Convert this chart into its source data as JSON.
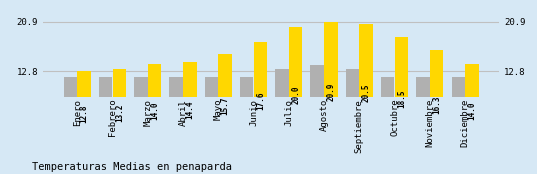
{
  "categories": [
    "Enero",
    "Febrero",
    "Marzo",
    "Abril",
    "Mayo",
    "Junio",
    "Julio",
    "Agosto",
    "Septiembre",
    "Octubre",
    "Noviembre",
    "Diciembre"
  ],
  "yellow_values": [
    12.8,
    13.2,
    14.0,
    14.4,
    15.7,
    17.6,
    20.0,
    20.9,
    20.5,
    18.5,
    16.3,
    14.0
  ],
  "gray_values": [
    11.8,
    11.8,
    11.8,
    11.8,
    11.8,
    11.8,
    13.2,
    13.8,
    13.2,
    11.8,
    11.8,
    11.8
  ],
  "yellow_color": "#FFD700",
  "gray_color": "#B0B0B0",
  "background_color": "#D6E8F5",
  "hline_color": "#C0C0C0",
  "hline_values": [
    12.8,
    20.9
  ],
  "ylabel_left_values": [
    "20.9",
    "12.8"
  ],
  "ylabel_right_values": [
    "20.9",
    "12.8"
  ],
  "title": "Temperaturas Medias en penaparda",
  "title_fontsize": 7.5,
  "tick_fontsize": 6.5,
  "value_fontsize": 5.5,
  "ylim_min": 8.5,
  "ylim_max": 22.5,
  "bar_width": 0.38,
  "bar_gap": 0.01
}
